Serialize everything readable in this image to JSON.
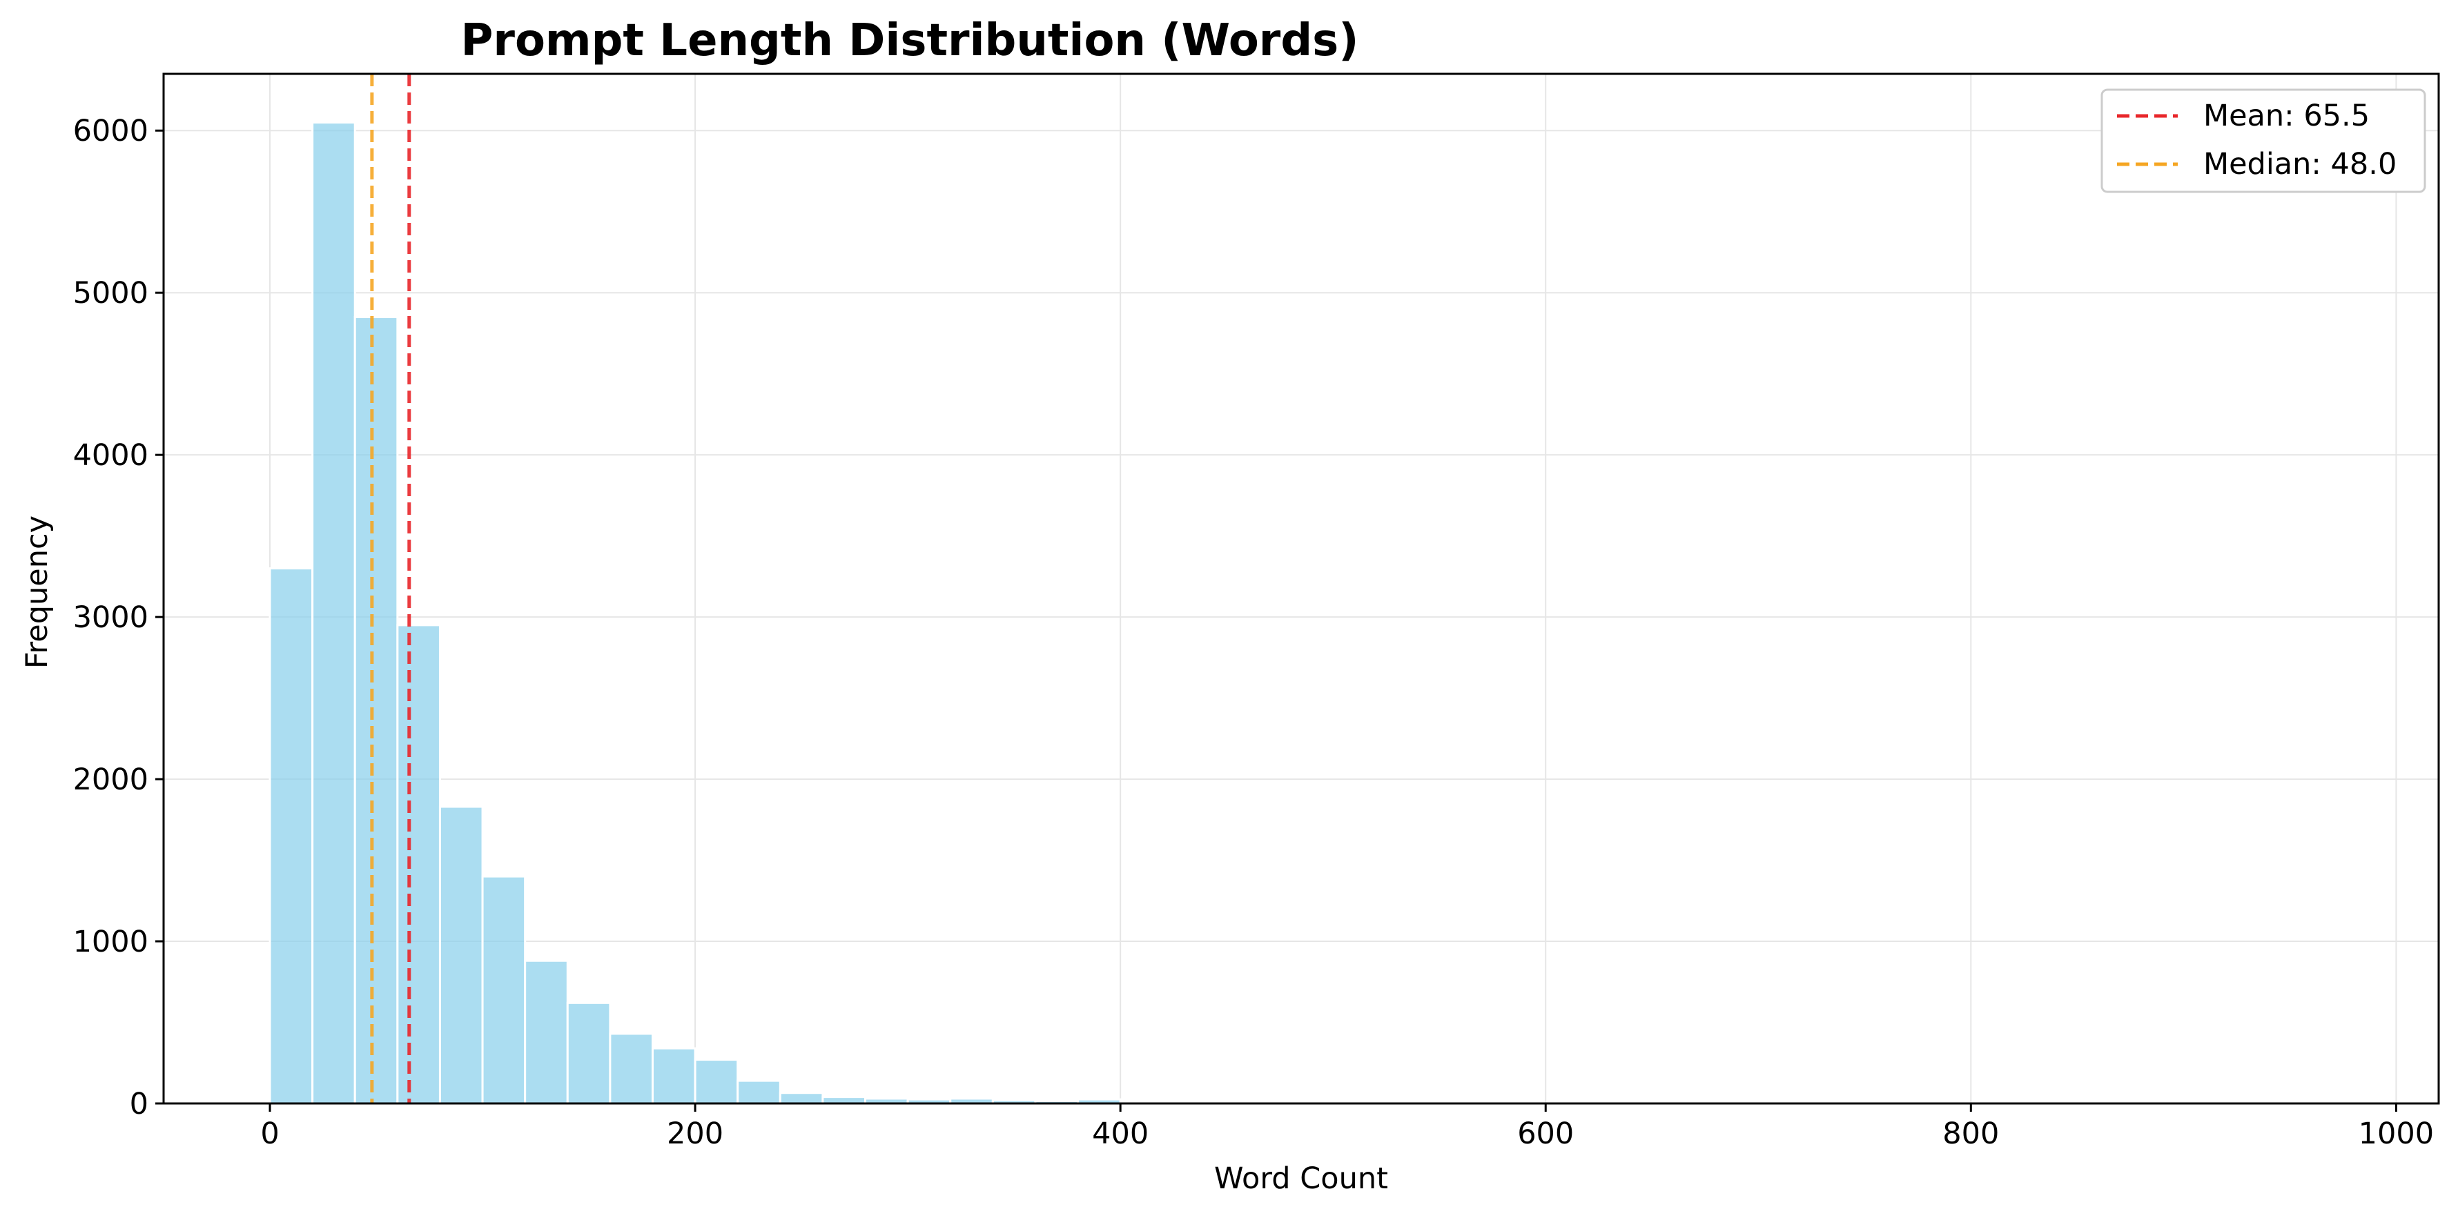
{
  "chart_data": {
    "type": "bar",
    "title": "Prompt Length Distribution (Words)",
    "xlabel": "Word Count",
    "ylabel": "Frequency",
    "xlim": [
      -50,
      1020
    ],
    "ylim": [
      0,
      6350
    ],
    "xticks": [
      0,
      200,
      400,
      600,
      800,
      1000
    ],
    "yticks": [
      0,
      1000,
      2000,
      3000,
      4000,
      5000,
      6000
    ],
    "grid": true,
    "bar_color": "#87ceeb",
    "bin_width": 20,
    "bins": [
      {
        "x0": 0,
        "x1": 20,
        "value": 3300
      },
      {
        "x0": 20,
        "x1": 40,
        "value": 6050
      },
      {
        "x0": 40,
        "x1": 60,
        "value": 4850
      },
      {
        "x0": 60,
        "x1": 80,
        "value": 2950
      },
      {
        "x0": 80,
        "x1": 100,
        "value": 1830
      },
      {
        "x0": 100,
        "x1": 120,
        "value": 1400
      },
      {
        "x0": 120,
        "x1": 140,
        "value": 880
      },
      {
        "x0": 140,
        "x1": 160,
        "value": 620
      },
      {
        "x0": 160,
        "x1": 180,
        "value": 430
      },
      {
        "x0": 180,
        "x1": 200,
        "value": 340
      },
      {
        "x0": 200,
        "x1": 220,
        "value": 270
      },
      {
        "x0": 220,
        "x1": 240,
        "value": 140
      },
      {
        "x0": 240,
        "x1": 260,
        "value": 65
      },
      {
        "x0": 260,
        "x1": 280,
        "value": 40
      },
      {
        "x0": 280,
        "x1": 300,
        "value": 30
      },
      {
        "x0": 300,
        "x1": 320,
        "value": 25
      },
      {
        "x0": 320,
        "x1": 340,
        "value": 30
      },
      {
        "x0": 340,
        "x1": 360,
        "value": 20
      },
      {
        "x0": 360,
        "x1": 380,
        "value": 15
      },
      {
        "x0": 380,
        "x1": 400,
        "value": 25
      },
      {
        "x0": 400,
        "x1": 420,
        "value": 5
      },
      {
        "x0": 420,
        "x1": 440,
        "value": 3
      },
      {
        "x0": 440,
        "x1": 460,
        "value": 2
      },
      {
        "x0": 460,
        "x1": 480,
        "value": 2
      },
      {
        "x0": 480,
        "x1": 500,
        "value": 1
      },
      {
        "x0": 500,
        "x1": 520,
        "value": 1
      }
    ],
    "reference_lines": [
      {
        "name": "Mean: 65.5",
        "value": 65.5,
        "color": "#e8262a"
      },
      {
        "name": "Median: 48.0",
        "value": 48.0,
        "color": "#f5a623"
      }
    ],
    "legend": {
      "placement": "top-right",
      "entries": [
        "Mean: 65.5",
        "Median: 48.0"
      ]
    }
  }
}
